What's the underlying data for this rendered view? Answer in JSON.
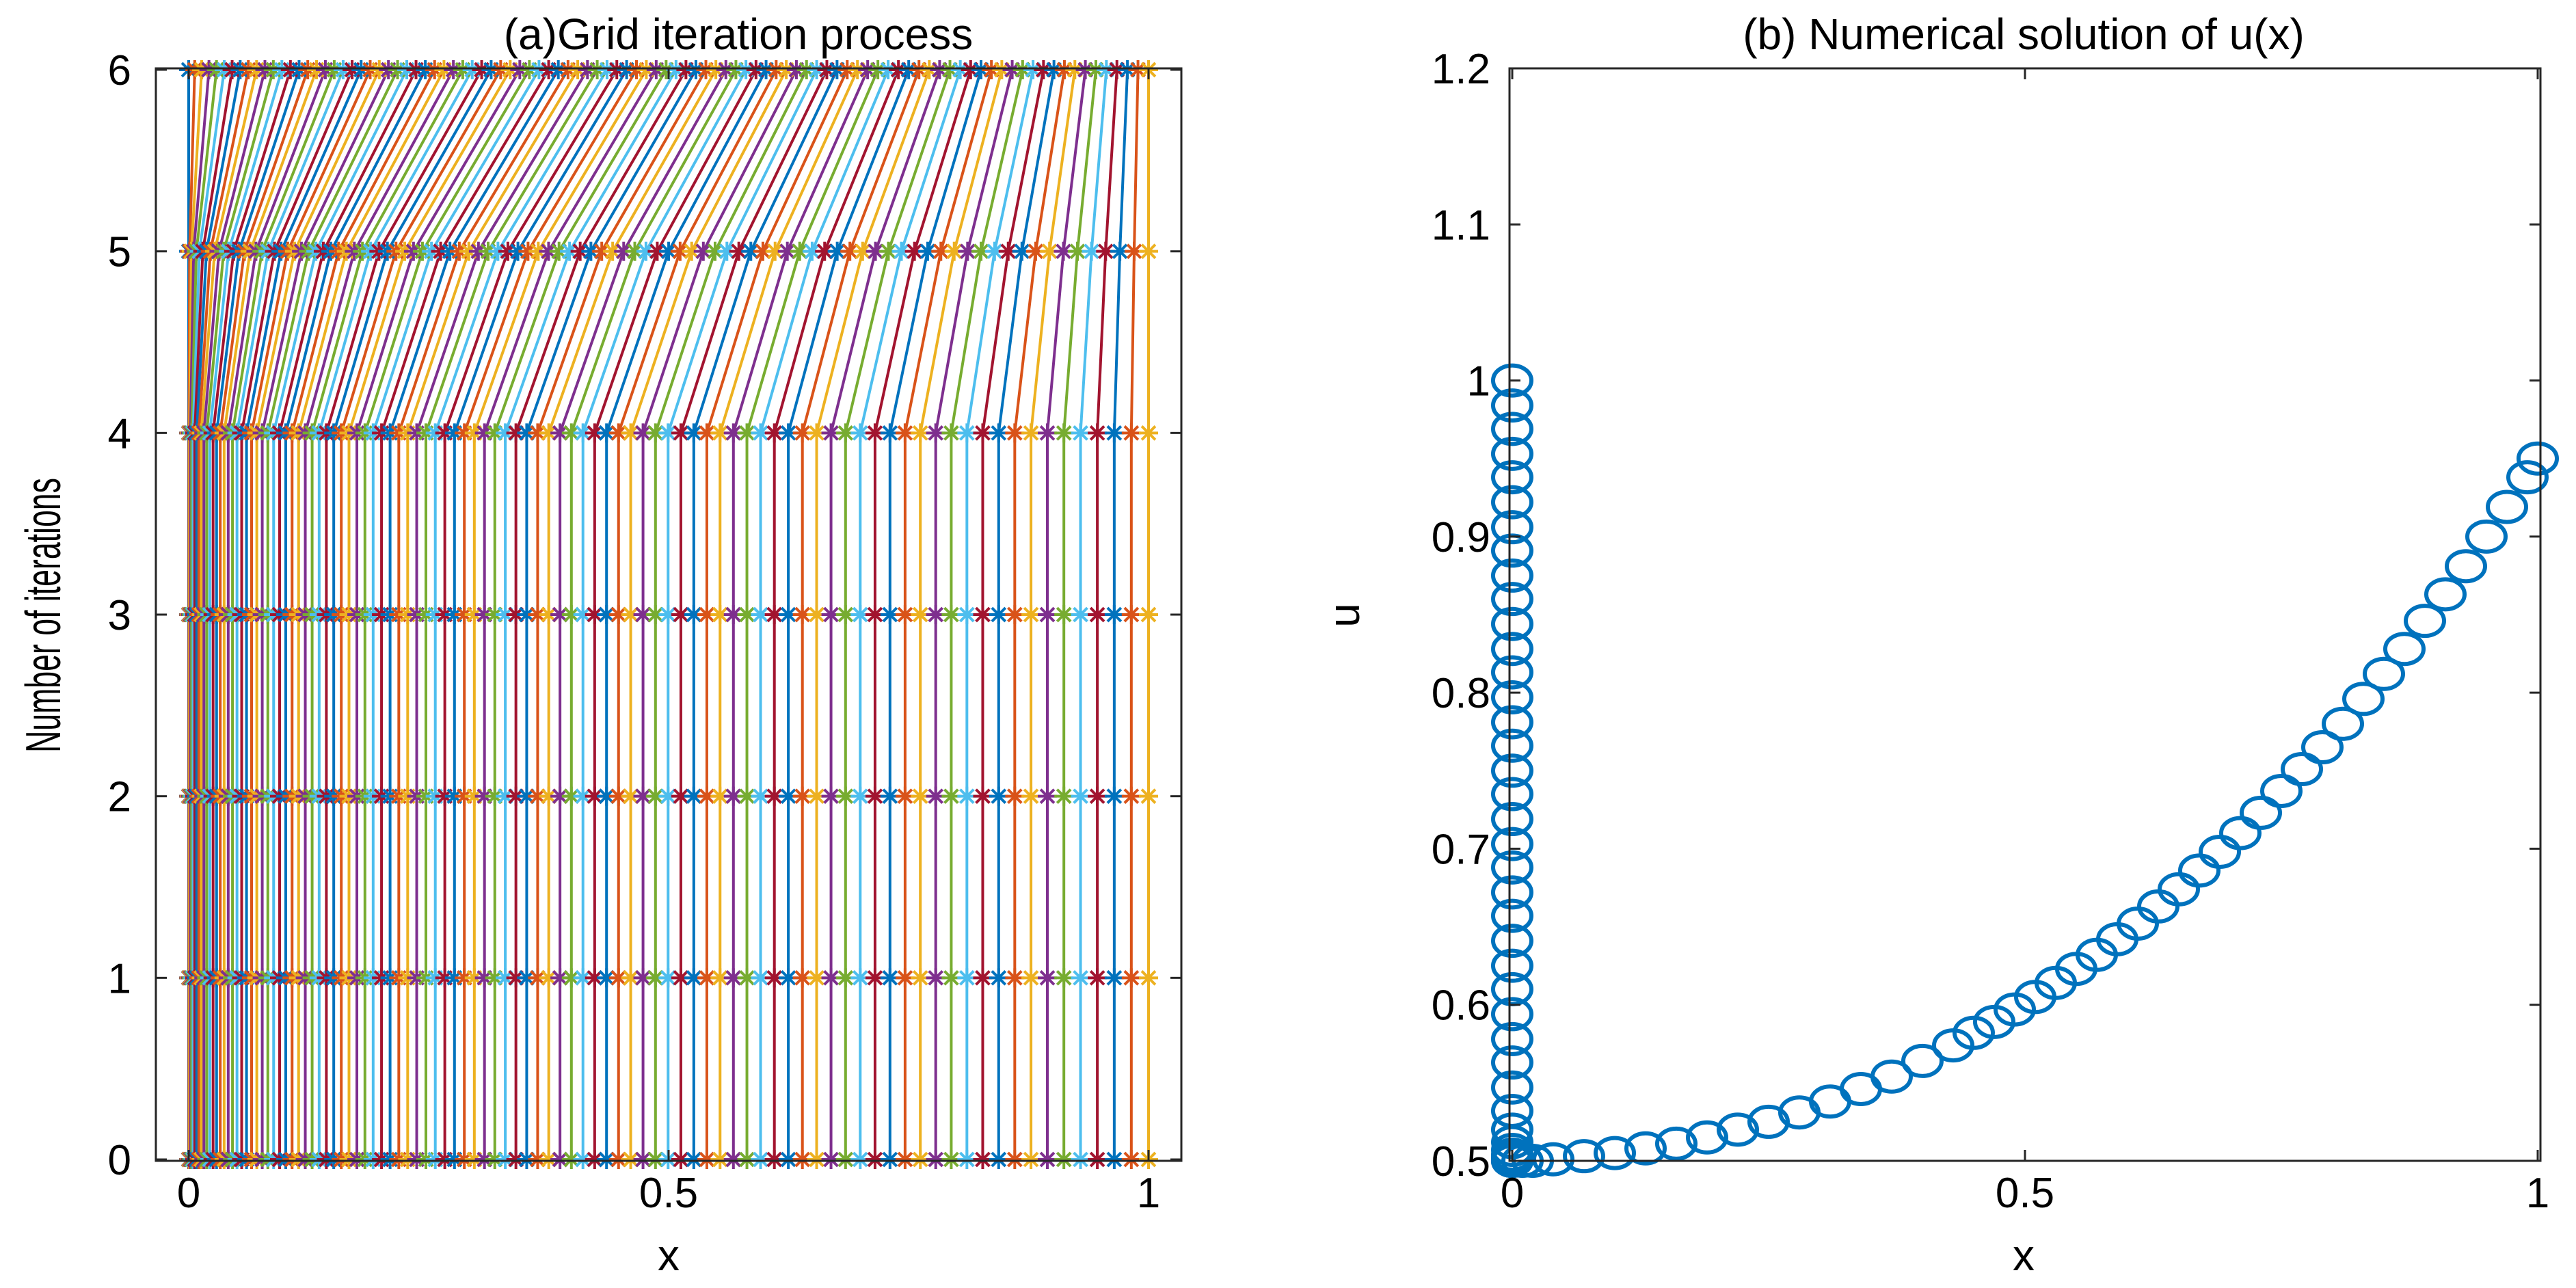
{
  "chart_data": [
    {
      "type": "line",
      "title": "(a)Grid iteration process",
      "xlabel": "x",
      "ylabel": "Number of  iterations",
      "xlim": [
        0,
        1
      ],
      "ylim": [
        0,
        6
      ],
      "xticks": [
        "0",
        "0.5",
        "1"
      ],
      "yticks": [
        "0",
        "1",
        "2",
        "3",
        "4",
        "5",
        "6"
      ],
      "grid": false,
      "legend": "none",
      "marker": "*",
      "num_grid_points": 101,
      "levels": [
        {
          "iteration": 0,
          "x_min": 0.0,
          "x_max": 1.0,
          "clustering": "x = s^1.8 (clustered near x = 0)"
        },
        {
          "iteration": 1,
          "x_min": 0.0,
          "x_max": 1.0,
          "clustering": "x = s^1.8"
        },
        {
          "iteration": 2,
          "x_min": 0.0,
          "x_max": 1.0,
          "clustering": "x = s^1.8"
        },
        {
          "iteration": 3,
          "x_min": 0.0,
          "x_max": 1.0,
          "clustering": "x = s^1.8"
        },
        {
          "iteration": 4,
          "x_min": 0.0,
          "x_max": 1.0,
          "clustering": "x = s^1.8"
        },
        {
          "iteration": 5,
          "x_min": 0.0,
          "x_max": 1.0,
          "clustering": "x = s^1.5"
        },
        {
          "iteration": 6,
          "x_min": 0.0,
          "x_max": 1.0,
          "clustering": "x = s^1.1"
        }
      ],
      "series_colors": [
        "#0072BD",
        "#D95319",
        "#EDB120",
        "#7E2F8E",
        "#77AC30",
        "#4DBEEE",
        "#A2142F"
      ]
    },
    {
      "type": "scatter",
      "title": "(b) Numerical solution of u(x)",
      "xlabel": "x",
      "ylabel": "u",
      "xlim": [
        0,
        1
      ],
      "ylim": [
        0.5,
        1.2
      ],
      "xticks": [
        "0",
        "0.5",
        "1"
      ],
      "yticks": [
        "0.5",
        "0.6",
        "0.7",
        "0.8",
        "0.9",
        "1",
        "1.1",
        "1.2"
      ],
      "grid": false,
      "legend": "none",
      "marker": "o",
      "color": "#0072BD",
      "x": [
        0,
        0,
        0,
        0,
        0,
        0,
        0,
        0,
        0,
        0,
        0,
        0,
        0,
        0,
        0,
        0,
        0,
        0,
        0,
        0,
        0,
        0,
        0,
        0,
        0,
        0,
        0,
        0,
        0,
        0,
        0,
        0,
        0,
        0,
        0,
        0,
        0,
        0,
        0,
        0,
        0,
        0,
        0,
        0,
        0,
        0.01,
        0.02,
        0.04,
        0.07,
        0.1,
        0.13,
        0.16,
        0.19,
        0.22,
        0.25,
        0.28,
        0.31,
        0.34,
        0.37,
        0.4,
        0.43,
        0.45,
        0.47,
        0.49,
        0.51,
        0.53,
        0.55,
        0.57,
        0.59,
        0.61,
        0.63,
        0.65,
        0.67,
        0.69,
        0.71,
        0.73,
        0.75,
        0.77,
        0.79,
        0.81,
        0.83,
        0.85,
        0.87,
        0.89,
        0.91,
        0.93,
        0.95,
        0.97,
        0.99,
        1.0
      ],
      "y": [
        1.0,
        0.984,
        0.969,
        0.953,
        0.938,
        0.922,
        0.906,
        0.891,
        0.875,
        0.86,
        0.844,
        0.828,
        0.813,
        0.797,
        0.781,
        0.766,
        0.75,
        0.735,
        0.719,
        0.703,
        0.688,
        0.672,
        0.657,
        0.641,
        0.625,
        0.61,
        0.594,
        0.578,
        0.563,
        0.547,
        0.532,
        0.52,
        0.512,
        0.507,
        0.504,
        0.502,
        0.501,
        0.5,
        0.5,
        0.5,
        0.5,
        0.5,
        0.5,
        0.5,
        0.5,
        0.5,
        0.5,
        0.501,
        0.503,
        0.505,
        0.508,
        0.511,
        0.515,
        0.52,
        0.525,
        0.531,
        0.538,
        0.546,
        0.554,
        0.564,
        0.574,
        0.582,
        0.589,
        0.597,
        0.605,
        0.614,
        0.623,
        0.632,
        0.642,
        0.652,
        0.663,
        0.674,
        0.686,
        0.698,
        0.71,
        0.723,
        0.737,
        0.751,
        0.765,
        0.78,
        0.796,
        0.812,
        0.828,
        0.846,
        0.863,
        0.881,
        0.9,
        0.919,
        0.938,
        0.95
      ]
    }
  ]
}
